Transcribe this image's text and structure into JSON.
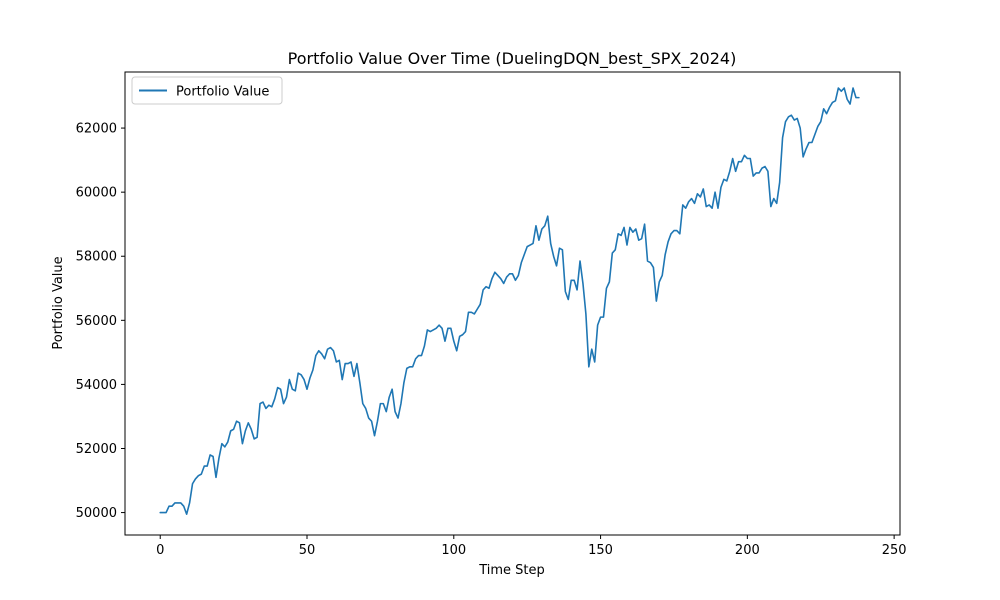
{
  "chart_data": {
    "type": "line",
    "title": "Portfolio Value Over Time (DuelingDQN_best_SPX_2024)",
    "xlabel": "Time Step",
    "ylabel": "Portfolio Value",
    "xlim": [
      -12,
      252
    ],
    "ylim": [
      49300,
      63750
    ],
    "xticks": [
      0,
      50,
      100,
      150,
      200,
      250
    ],
    "yticks": [
      50000,
      52000,
      54000,
      56000,
      58000,
      60000,
      62000
    ],
    "grid": false,
    "legend_position": "top-left",
    "series": [
      {
        "name": "Portfolio Value",
        "color": "#1f77b4",
        "values": [
          50000,
          50000,
          50000,
          50200,
          50200,
          50300,
          50300,
          50300,
          50200,
          49950,
          50300,
          50900,
          51050,
          51150,
          51200,
          51450,
          51450,
          51800,
          51750,
          51100,
          51700,
          52150,
          52050,
          52200,
          52550,
          52600,
          52850,
          52800,
          52150,
          52550,
          52800,
          52600,
          52300,
          52350,
          53400,
          53450,
          53250,
          53350,
          53300,
          53550,
          53900,
          53850,
          53400,
          53600,
          54150,
          53850,
          53800,
          54350,
          54300,
          54150,
          53850,
          54200,
          54450,
          54900,
          55050,
          54950,
          54800,
          55100,
          55150,
          55050,
          54700,
          54750,
          54150,
          54650,
          54650,
          54700,
          54250,
          54650,
          54050,
          53400,
          53250,
          52950,
          52850,
          52400,
          52850,
          53400,
          53400,
          53150,
          53600,
          53850,
          53150,
          52950,
          53400,
          54050,
          54500,
          54550,
          54550,
          54800,
          54900,
          54900,
          55200,
          55700,
          55650,
          55700,
          55750,
          55850,
          55750,
          55350,
          55750,
          55750,
          55350,
          55050,
          55500,
          55550,
          55650,
          56250,
          56250,
          56200,
          56350,
          56500,
          56950,
          57050,
          57000,
          57300,
          57500,
          57400,
          57300,
          57150,
          57350,
          57450,
          57450,
          57250,
          57400,
          57800,
          58050,
          58300,
          58350,
          58400,
          58950,
          58500,
          58850,
          58950,
          59250,
          58400,
          58000,
          57700,
          58250,
          58200,
          56900,
          56650,
          57250,
          57250,
          56950,
          57850,
          57150,
          56200,
          54550,
          55100,
          54700,
          55850,
          56100,
          56100,
          57000,
          57200,
          58100,
          58200,
          58700,
          58650,
          58900,
          58350,
          58900,
          58750,
          58850,
          58500,
          58550,
          59000,
          57850,
          57800,
          57650,
          56600,
          57200,
          57400,
          58050,
          58450,
          58700,
          58800,
          58800,
          58700,
          59600,
          59500,
          59700,
          59800,
          59650,
          59950,
          59850,
          60100,
          59550,
          59600,
          59500,
          60000,
          59500,
          60150,
          60400,
          60350,
          60650,
          61050,
          60650,
          60950,
          60950,
          61150,
          61050,
          61050,
          60500,
          60600,
          60600,
          60750,
          60800,
          60650,
          59550,
          59800,
          59650,
          60300,
          61700,
          62200,
          62350,
          62400,
          62250,
          62300,
          62000,
          61100,
          61350,
          61550,
          61550,
          61800,
          62050,
          62200,
          62600,
          62450,
          62650,
          62800,
          62850,
          63250,
          63150,
          63250,
          62900,
          62750,
          63250,
          62950,
          62950
        ]
      }
    ]
  }
}
